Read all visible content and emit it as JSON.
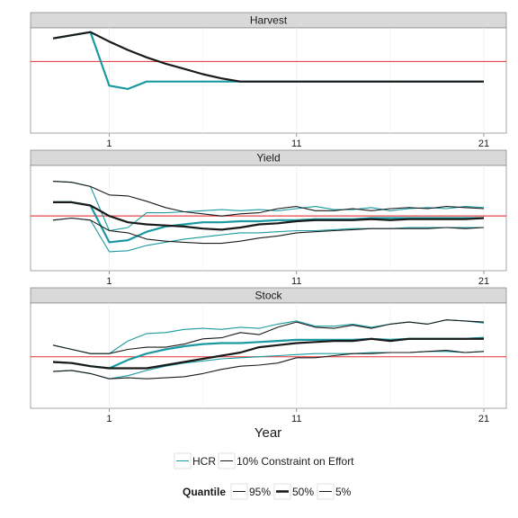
{
  "chart_data": {
    "type": "line",
    "xlabel": "Year",
    "x_ticks": [
      1,
      11,
      21
    ],
    "xlim": [
      -3.2,
      22.2
    ],
    "ref_color": "#E8474B",
    "legend": {
      "series_title": "",
      "entries": [
        {
          "key": "hcr",
          "label": "HCR",
          "color": "#1A9AA0"
        },
        {
          "key": "effort",
          "label": "10% Constraint on Effort",
          "color": "#1a1a1a"
        }
      ],
      "quantile_title": "Quantile",
      "quantiles": [
        {
          "key": "q95",
          "label": "95%"
        },
        {
          "key": "q50",
          "label": "50%"
        },
        {
          "key": "q5",
          "label": "5%"
        }
      ]
    },
    "panels": [
      {
        "title": "Harvest",
        "ylim": [
          0,
          1
        ],
        "ref": 0.68,
        "series": [
          {
            "group": "hcr",
            "quantile": "q50",
            "x": [
              -2,
              -1,
              0,
              1,
              2,
              3,
              4,
              5,
              6,
              7,
              8,
              9,
              10,
              11,
              12,
              13,
              14,
              15,
              16,
              17,
              18,
              19,
              20,
              21
            ],
            "y": [
              0.9,
              0.93,
              0.96,
              0.45,
              0.42,
              0.49,
              0.49,
              0.49,
              0.49,
              0.49,
              0.49,
              0.49,
              0.49,
              0.49,
              0.49,
              0.49,
              0.49,
              0.49,
              0.49,
              0.49,
              0.49,
              0.49,
              0.49,
              0.49
            ]
          },
          {
            "group": "effort",
            "quantile": "q50",
            "x": [
              -2,
              -1,
              0,
              1,
              2,
              3,
              4,
              5,
              6,
              7,
              8,
              9,
              10,
              11,
              12,
              13,
              14,
              15,
              16,
              17,
              18,
              19,
              20,
              21
            ],
            "y": [
              0.9,
              0.93,
              0.96,
              0.87,
              0.79,
              0.72,
              0.66,
              0.61,
              0.56,
              0.52,
              0.49,
              0.49,
              0.49,
              0.49,
              0.49,
              0.49,
              0.49,
              0.49,
              0.49,
              0.49,
              0.49,
              0.49,
              0.49,
              0.49
            ]
          }
        ]
      },
      {
        "title": "Yield",
        "ylim": [
          0,
          1
        ],
        "ref": 0.52,
        "series": [
          {
            "group": "hcr",
            "quantile": "q95",
            "x": [
              -2,
              -1,
              0,
              1,
              2,
              3,
              4,
              5,
              6,
              7,
              8,
              9,
              10,
              11,
              12,
              13,
              14,
              15,
              16,
              17,
              18,
              19,
              20,
              21
            ],
            "y": [
              0.85,
              0.84,
              0.8,
              0.38,
              0.41,
              0.55,
              0.55,
              0.56,
              0.57,
              0.58,
              0.57,
              0.58,
              0.57,
              0.59,
              0.61,
              0.58,
              0.58,
              0.6,
              0.57,
              0.59,
              0.6,
              0.59,
              0.61,
              0.6
            ]
          },
          {
            "group": "hcr",
            "quantile": "q50",
            "x": [
              -2,
              -1,
              0,
              1,
              2,
              3,
              4,
              5,
              6,
              7,
              8,
              9,
              10,
              11,
              12,
              13,
              14,
              15,
              16,
              17,
              18,
              19,
              20,
              21
            ],
            "y": [
              0.65,
              0.65,
              0.62,
              0.27,
              0.29,
              0.37,
              0.42,
              0.44,
              0.46,
              0.46,
              0.47,
              0.47,
              0.48,
              0.48,
              0.49,
              0.49,
              0.49,
              0.5,
              0.5,
              0.5,
              0.5,
              0.5,
              0.5,
              0.5
            ]
          },
          {
            "group": "hcr",
            "quantile": "q5",
            "x": [
              -2,
              -1,
              0,
              1,
              2,
              3,
              4,
              5,
              6,
              7,
              8,
              9,
              10,
              11,
              12,
              13,
              14,
              15,
              16,
              17,
              18,
              19,
              20,
              21
            ],
            "y": [
              0.48,
              0.5,
              0.48,
              0.18,
              0.19,
              0.24,
              0.27,
              0.3,
              0.32,
              0.34,
              0.36,
              0.36,
              0.37,
              0.38,
              0.38,
              0.39,
              0.4,
              0.4,
              0.4,
              0.41,
              0.41,
              0.41,
              0.41,
              0.41
            ]
          },
          {
            "group": "effort",
            "quantile": "q95",
            "x": [
              -2,
              -1,
              0,
              1,
              2,
              3,
              4,
              5,
              6,
              7,
              8,
              9,
              10,
              11,
              12,
              13,
              14,
              15,
              16,
              17,
              18,
              19,
              20,
              21
            ],
            "y": [
              0.85,
              0.84,
              0.8,
              0.72,
              0.71,
              0.66,
              0.6,
              0.56,
              0.54,
              0.52,
              0.54,
              0.55,
              0.59,
              0.61,
              0.57,
              0.57,
              0.59,
              0.57,
              0.59,
              0.6,
              0.59,
              0.61,
              0.6,
              0.59
            ]
          },
          {
            "group": "effort",
            "quantile": "q50",
            "x": [
              -2,
              -1,
              0,
              1,
              2,
              3,
              4,
              5,
              6,
              7,
              8,
              9,
              10,
              11,
              12,
              13,
              14,
              15,
              16,
              17,
              18,
              19,
              20,
              21
            ],
            "y": [
              0.65,
              0.65,
              0.62,
              0.52,
              0.46,
              0.44,
              0.43,
              0.42,
              0.4,
              0.39,
              0.41,
              0.44,
              0.45,
              0.47,
              0.48,
              0.48,
              0.48,
              0.49,
              0.48,
              0.49,
              0.49,
              0.49,
              0.49,
              0.5
            ]
          },
          {
            "group": "effort",
            "quantile": "q5",
            "x": [
              -2,
              -1,
              0,
              1,
              2,
              3,
              4,
              5,
              6,
              7,
              8,
              9,
              10,
              11,
              12,
              13,
              14,
              15,
              16,
              17,
              18,
              19,
              20,
              21
            ],
            "y": [
              0.48,
              0.5,
              0.48,
              0.38,
              0.36,
              0.3,
              0.28,
              0.27,
              0.26,
              0.26,
              0.28,
              0.31,
              0.33,
              0.36,
              0.37,
              0.38,
              0.39,
              0.4,
              0.4,
              0.4,
              0.4,
              0.41,
              0.4,
              0.41
            ]
          }
        ]
      },
      {
        "title": "Stock",
        "ylim": [
          0,
          1
        ],
        "ref": 0.49,
        "series": [
          {
            "group": "hcr",
            "quantile": "q95",
            "x": [
              -2,
              -1,
              0,
              1,
              2,
              3,
              4,
              5,
              6,
              7,
              8,
              9,
              10,
              11,
              12,
              13,
              14,
              15,
              16,
              17,
              18,
              19,
              20,
              21
            ],
            "y": [
              0.6,
              0.56,
              0.52,
              0.52,
              0.64,
              0.71,
              0.72,
              0.75,
              0.76,
              0.75,
              0.77,
              0.76,
              0.8,
              0.83,
              0.78,
              0.78,
              0.8,
              0.77,
              0.8,
              0.82,
              0.8,
              0.84,
              0.83,
              0.81
            ]
          },
          {
            "group": "hcr",
            "quantile": "q50",
            "x": [
              -2,
              -1,
              0,
              1,
              2,
              3,
              4,
              5,
              6,
              7,
              8,
              9,
              10,
              11,
              12,
              13,
              14,
              15,
              16,
              17,
              18,
              19,
              20,
              21
            ],
            "y": [
              0.44,
              0.43,
              0.4,
              0.38,
              0.46,
              0.52,
              0.56,
              0.59,
              0.61,
              0.62,
              0.62,
              0.63,
              0.64,
              0.65,
              0.65,
              0.65,
              0.65,
              0.66,
              0.65,
              0.66,
              0.66,
              0.66,
              0.66,
              0.67
            ]
          },
          {
            "group": "hcr",
            "quantile": "q5",
            "x": [
              -2,
              -1,
              0,
              1,
              2,
              3,
              4,
              5,
              6,
              7,
              8,
              9,
              10,
              11,
              12,
              13,
              14,
              15,
              16,
              17,
              18,
              19,
              20,
              21
            ],
            "y": [
              0.35,
              0.36,
              0.33,
              0.28,
              0.31,
              0.36,
              0.4,
              0.43,
              0.45,
              0.47,
              0.48,
              0.49,
              0.5,
              0.51,
              0.52,
              0.52,
              0.52,
              0.53,
              0.53,
              0.53,
              0.54,
              0.54,
              0.53,
              0.54
            ]
          },
          {
            "group": "effort",
            "quantile": "q95",
            "x": [
              -2,
              -1,
              0,
              1,
              2,
              3,
              4,
              5,
              6,
              7,
              8,
              9,
              10,
              11,
              12,
              13,
              14,
              15,
              16,
              17,
              18,
              19,
              20,
              21
            ],
            "y": [
              0.6,
              0.56,
              0.52,
              0.52,
              0.56,
              0.58,
              0.58,
              0.61,
              0.66,
              0.67,
              0.72,
              0.7,
              0.77,
              0.82,
              0.77,
              0.76,
              0.79,
              0.76,
              0.8,
              0.82,
              0.8,
              0.84,
              0.83,
              0.82
            ]
          },
          {
            "group": "effort",
            "quantile": "q50",
            "x": [
              -2,
              -1,
              0,
              1,
              2,
              3,
              4,
              5,
              6,
              7,
              8,
              9,
              10,
              11,
              12,
              13,
              14,
              15,
              16,
              17,
              18,
              19,
              20,
              21
            ],
            "y": [
              0.44,
              0.43,
              0.4,
              0.38,
              0.38,
              0.38,
              0.41,
              0.44,
              0.47,
              0.5,
              0.53,
              0.58,
              0.6,
              0.62,
              0.63,
              0.64,
              0.64,
              0.66,
              0.64,
              0.66,
              0.66,
              0.66,
              0.66,
              0.66
            ]
          },
          {
            "group": "effort",
            "quantile": "q5",
            "x": [
              -2,
              -1,
              0,
              1,
              2,
              3,
              4,
              5,
              6,
              7,
              8,
              9,
              10,
              11,
              12,
              13,
              14,
              15,
              16,
              17,
              18,
              19,
              20,
              21
            ],
            "y": [
              0.35,
              0.36,
              0.33,
              0.28,
              0.29,
              0.28,
              0.29,
              0.3,
              0.33,
              0.37,
              0.4,
              0.41,
              0.43,
              0.48,
              0.48,
              0.5,
              0.52,
              0.52,
              0.53,
              0.53,
              0.54,
              0.55,
              0.53,
              0.54
            ]
          }
        ]
      }
    ]
  }
}
